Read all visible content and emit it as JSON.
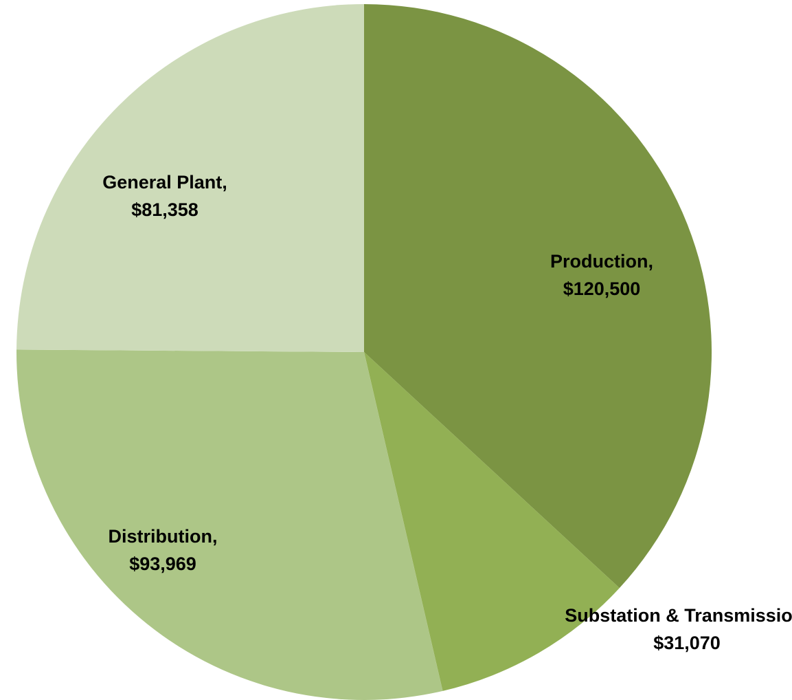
{
  "chart_data": {
    "type": "pie",
    "categories": [
      "Production,",
      "Substation & Transmission,",
      "Distribution,",
      "General Plant,"
    ],
    "values": [
      120500,
      31070,
      93969,
      81358
    ],
    "value_labels": [
      "$120,500",
      "$31,070",
      "$93,969",
      "$81,358"
    ],
    "colors": [
      "#7b9443",
      "#92b054",
      "#adc687",
      "#cddbb9"
    ]
  }
}
